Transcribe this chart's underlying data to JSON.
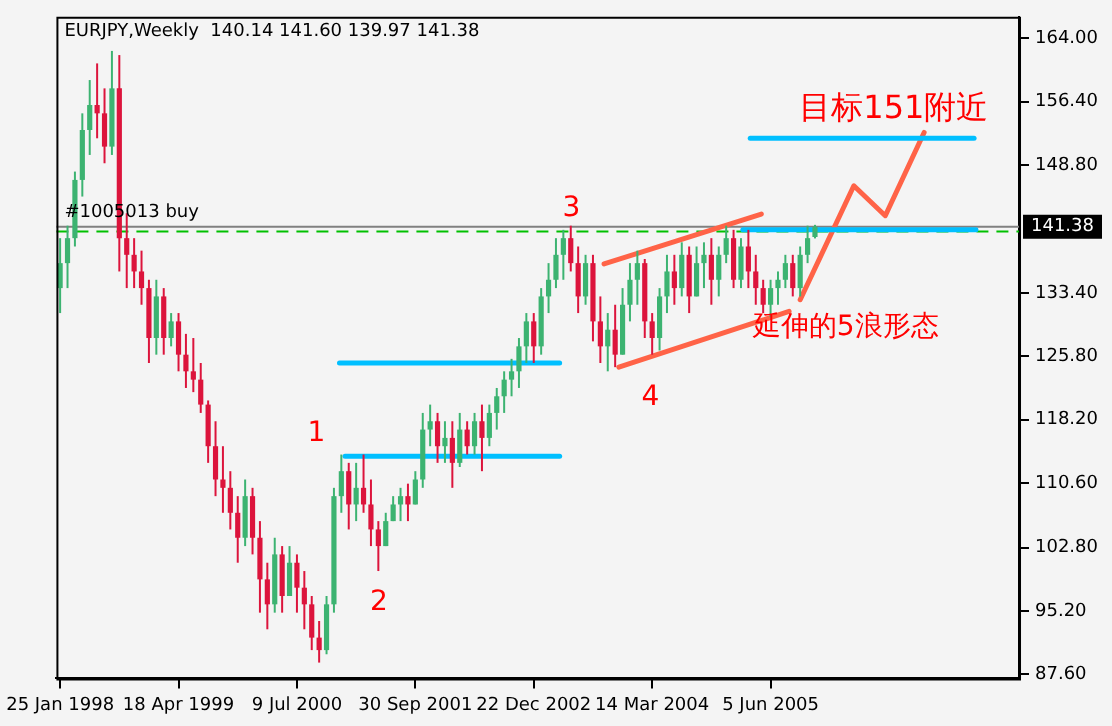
{
  "chart_data": {
    "type": "candlestick",
    "title": "EURJPY,Weekly  140.14 141.60 139.97 141.38",
    "x": [
      "1998-01-25",
      "1998-02-22",
      "1998-03-22",
      "1998-04-19",
      "1998-05-17",
      "1998-06-14",
      "1998-07-12",
      "1998-08-09",
      "1998-09-06",
      "1998-10-04",
      "1998-11-01",
      "1998-11-29",
      "1998-12-27",
      "1999-01-24",
      "1999-02-21",
      "1999-03-21",
      "1999-04-18",
      "1999-05-16",
      "1999-06-13",
      "1999-07-11",
      "1999-08-08",
      "1999-09-05",
      "1999-10-03",
      "1999-10-31",
      "1999-11-28",
      "1999-12-26",
      "2000-01-23",
      "2000-02-20",
      "2000-03-19",
      "2000-04-16",
      "2000-05-14",
      "2000-06-11",
      "2000-07-09",
      "2000-08-06",
      "2000-09-03",
      "2000-10-01",
      "2000-10-29",
      "2000-11-26",
      "2000-12-24",
      "2001-01-21",
      "2001-02-18",
      "2001-03-18",
      "2001-04-15",
      "2001-05-13",
      "2001-06-10",
      "2001-07-08",
      "2001-08-05",
      "2001-09-02",
      "2001-09-30",
      "2001-10-28",
      "2001-11-25",
      "2001-12-23",
      "2002-01-20",
      "2002-02-17",
      "2002-03-17",
      "2002-04-14",
      "2002-05-12",
      "2002-06-09",
      "2002-07-07",
      "2002-08-04",
      "2002-09-01",
      "2002-09-29",
      "2002-10-27",
      "2002-11-24",
      "2002-12-22",
      "2003-01-19",
      "2003-02-16",
      "2003-03-16",
      "2003-04-13",
      "2003-05-11",
      "2003-06-08",
      "2003-07-06",
      "2003-08-03",
      "2003-08-31",
      "2003-09-28",
      "2003-10-26",
      "2003-11-23",
      "2003-12-21",
      "2004-01-18",
      "2004-02-15",
      "2004-03-14",
      "2004-04-11",
      "2004-05-09",
      "2004-06-06",
      "2004-07-04",
      "2004-08-01",
      "2004-08-29",
      "2004-09-26",
      "2004-10-24",
      "2004-11-21",
      "2004-12-19",
      "2005-01-16",
      "2005-02-13",
      "2005-03-13",
      "2005-04-10",
      "2005-05-08",
      "2005-06-05",
      "2005-07-03",
      "2005-07-31",
      "2005-08-28",
      "2005-09-25",
      "2005-10-23",
      "2005-11-20"
    ],
    "ohlc": [
      [
        134,
        140,
        131,
        137
      ],
      [
        137,
        141.5,
        134,
        140
      ],
      [
        140,
        148,
        139,
        147
      ],
      [
        147,
        155,
        145,
        153
      ],
      [
        153,
        159,
        150,
        156
      ],
      [
        156,
        161,
        152,
        155
      ],
      [
        155,
        158,
        149,
        151
      ],
      [
        151,
        162.5,
        150,
        158
      ],
      [
        158,
        162,
        136,
        140
      ],
      [
        140,
        143,
        134,
        138
      ],
      [
        138,
        140,
        134,
        136
      ],
      [
        136,
        138.5,
        132,
        134
      ],
      [
        134,
        135,
        125,
        128
      ],
      [
        128,
        135,
        126,
        133
      ],
      [
        133,
        134,
        126,
        128
      ],
      [
        128,
        131,
        127,
        130
      ],
      [
        130,
        131,
        124,
        126
      ],
      [
        126,
        128.5,
        122,
        124
      ],
      [
        124,
        128,
        121.5,
        123
      ],
      [
        123,
        125,
        119,
        120
      ],
      [
        120,
        120.5,
        113,
        115
      ],
      [
        115,
        118,
        109,
        111
      ],
      [
        111,
        115,
        107,
        110
      ],
      [
        110,
        112,
        105,
        107
      ],
      [
        107,
        109,
        101,
        104
      ],
      [
        104,
        111,
        103,
        109
      ],
      [
        109,
        110,
        102,
        104
      ],
      [
        104,
        106,
        95,
        99
      ],
      [
        99,
        101,
        93,
        96
      ],
      [
        96,
        104,
        95,
        102
      ],
      [
        102,
        103,
        95,
        97
      ],
      [
        97,
        103,
        97,
        101
      ],
      [
        101,
        102,
        95,
        98
      ],
      [
        98,
        100,
        93,
        96
      ],
      [
        96,
        97,
        90.5,
        92
      ],
      [
        92,
        94,
        89,
        90.5
      ],
      [
        90.5,
        97,
        90,
        96
      ],
      [
        96,
        110,
        95,
        109
      ],
      [
        109,
        114,
        107,
        112
      ],
      [
        112,
        113,
        105,
        108
      ],
      [
        108,
        113,
        106,
        110
      ],
      [
        110,
        114,
        107,
        108
      ],
      [
        108,
        111,
        103,
        105
      ],
      [
        105,
        106,
        100,
        103
      ],
      [
        103,
        107,
        103,
        106
      ],
      [
        106,
        109,
        106,
        108
      ],
      [
        108,
        110,
        106,
        109
      ],
      [
        109,
        110.5,
        106,
        108
      ],
      [
        108,
        112,
        108,
        111
      ],
      [
        111,
        119,
        110,
        117
      ],
      [
        117,
        120,
        115,
        118
      ],
      [
        118,
        119,
        113,
        115
      ],
      [
        115,
        118,
        113,
        116
      ],
      [
        116,
        118,
        110,
        113
      ],
      [
        113,
        119,
        112.5,
        117
      ],
      [
        117,
        118,
        114,
        115
      ],
      [
        115,
        119,
        114,
        118
      ],
      [
        118,
        120,
        112,
        116
      ],
      [
        116,
        120,
        115,
        119
      ],
      [
        119,
        122,
        117,
        121
      ],
      [
        121,
        124,
        119,
        123
      ],
      [
        123,
        125.5,
        121,
        124
      ],
      [
        124,
        128,
        122,
        127
      ],
      [
        127,
        131,
        125,
        130
      ],
      [
        130,
        131,
        125,
        127
      ],
      [
        127,
        134,
        126,
        133
      ],
      [
        133,
        137,
        131,
        135
      ],
      [
        135,
        140,
        134,
        138
      ],
      [
        138,
        141,
        135,
        140
      ],
      [
        140,
        141.5,
        136,
        137
      ],
      [
        137,
        139,
        131,
        133
      ],
      [
        133,
        138,
        132,
        137
      ],
      [
        137,
        138,
        127.6,
        130
      ],
      [
        130,
        133,
        125,
        127
      ],
      [
        127,
        131,
        124,
        129
      ],
      [
        129,
        132,
        124.5,
        126
      ],
      [
        126,
        134,
        126,
        132
      ],
      [
        132,
        137,
        130,
        135
      ],
      [
        135,
        138.5,
        132,
        137
      ],
      [
        137,
        137.5,
        128,
        130
      ],
      [
        130,
        131,
        126,
        128
      ],
      [
        128,
        134,
        126.5,
        133
      ],
      [
        133,
        138,
        131,
        136
      ],
      [
        136,
        138,
        132,
        134
      ],
      [
        134,
        139.5,
        133,
        138
      ],
      [
        138,
        139,
        131,
        133
      ],
      [
        133,
        139,
        133,
        137
      ],
      [
        137,
        139.5,
        134,
        138
      ],
      [
        138,
        140,
        132,
        135
      ],
      [
        135,
        139,
        133,
        138
      ],
      [
        138,
        141.5,
        137,
        140
      ],
      [
        140,
        141,
        134,
        135
      ],
      [
        135,
        140,
        134,
        139
      ],
      [
        139,
        141,
        134,
        136
      ],
      [
        136,
        138,
        132,
        134
      ],
      [
        134,
        135,
        131,
        132
      ],
      [
        132,
        135,
        130.5,
        134
      ],
      [
        134,
        136,
        132,
        135
      ],
      [
        135,
        138,
        134,
        137
      ],
      [
        137,
        138,
        133,
        134
      ],
      [
        134,
        139,
        133,
        138
      ],
      [
        138,
        141.5,
        137,
        140
      ],
      [
        140.14,
        141.6,
        139.97,
        141.38
      ]
    ],
    "series": [
      {
        "type": "line",
        "color": "#00bfff",
        "x": [
          "2001-01-07",
          "2003-03-30"
        ],
        "values": [
          113.8,
          113.8
        ]
      },
      {
        "type": "line",
        "color": "#00bfff",
        "x": [
          "2000-12-17",
          "2003-03-30"
        ],
        "values": [
          125,
          125
        ]
      },
      {
        "type": "line",
        "color": "#00bfff",
        "x": [
          "2005-02-20",
          "2007-07-22"
        ],
        "values": [
          141,
          141
        ]
      },
      {
        "type": "line",
        "color": "#00bfff",
        "x": [
          "2005-03-20",
          "2007-07-15"
        ],
        "values": [
          152,
          152
        ]
      },
      {
        "type": "line",
        "color": "#ff6347",
        "x": [
          "2003-09-14",
          "2005-05-01"
        ],
        "values": [
          136.9,
          142.9
        ]
      },
      {
        "type": "line",
        "color": "#ff6347",
        "x": [
          "2003-11-09",
          "2005-08-14"
        ],
        "values": [
          124.5,
          131.2
        ]
      },
      {
        "type": "line",
        "color": "#ff6347",
        "x": [
          "2005-09-25",
          "2006-04-16",
          "2006-08-13",
          "2007-01-07"
        ],
        "values": [
          132.6,
          146.3,
          142.7,
          152.7
        ]
      }
    ],
    "ref_lines": [
      {
        "axis": "y",
        "value": 141.38,
        "label": "141.38",
        "color": "#808080",
        "line_style": "solid"
      },
      {
        "axis": "y",
        "value": 140.8,
        "label": "#1005013 buy",
        "color": "#00c000",
        "line_style": "dashed"
      }
    ],
    "annotations": [
      "1",
      "2",
      "3",
      "4",
      "目标151附近",
      "延伸的5浪形态"
    ],
    "xlim": [
      "1998-01-11",
      "2008-01-01"
    ],
    "xticks": [
      {
        "value": "1998-01-25",
        "label": "25 Jan 1998"
      },
      {
        "value": "1999-04-18",
        "label": "18 Apr 1999"
      },
      {
        "value": "2000-07-09",
        "label": "9 Jul 2000"
      },
      {
        "value": "2001-09-30",
        "label": "30 Sep 2001"
      },
      {
        "value": "2002-12-22",
        "label": "22 Dec 2002"
      },
      {
        "value": "2004-03-14",
        "label": "14 Mar 2004"
      },
      {
        "value": "2005-06-05",
        "label": "5 Jun 2005"
      }
    ],
    "ylim": [
      87.1,
      166.6
    ],
    "yticks": [
      {
        "value": 87.6,
        "label": "87.60"
      },
      {
        "value": 95.2,
        "label": "95.20"
      },
      {
        "value": 102.8,
        "label": "102.80"
      },
      {
        "value": 110.6,
        "label": "110.60"
      },
      {
        "value": 118.2,
        "label": "118.20"
      },
      {
        "value": 125.8,
        "label": "125.80"
      },
      {
        "value": 133.4,
        "label": "133.40"
      },
      {
        "value": 148.8,
        "label": "148.80"
      },
      {
        "value": 156.4,
        "label": "156.40"
      },
      {
        "value": 164,
        "label": "164.00"
      }
    ],
    "grid": false,
    "legend": false
  }
}
